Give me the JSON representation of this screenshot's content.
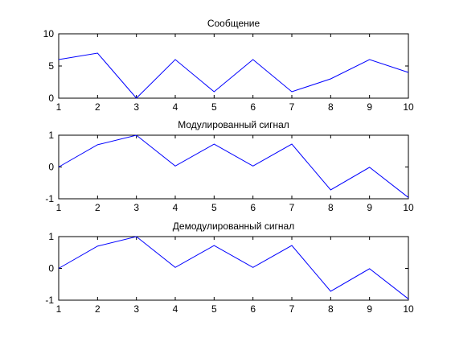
{
  "figure": {
    "background_color": "#ffffff",
    "line_color": "#0000ff"
  },
  "chart_data": [
    {
      "type": "line",
      "title": "Сообщение",
      "x": [
        1,
        2,
        3,
        4,
        5,
        6,
        7,
        8,
        9,
        10
      ],
      "y": [
        6,
        7,
        0,
        6,
        1,
        6,
        1,
        3,
        6,
        4
      ],
      "xlim": [
        1,
        10
      ],
      "ylim": [
        0,
        10
      ],
      "xticks": [
        1,
        2,
        3,
        4,
        5,
        6,
        7,
        8,
        9,
        10
      ],
      "yticks": [
        0,
        5,
        10
      ],
      "grid": false
    },
    {
      "type": "line",
      "title": "Модулированный сигнал",
      "x": [
        1,
        2,
        3,
        4,
        5,
        6,
        7,
        8,
        9,
        10
      ],
      "y": [
        0.0,
        0.7,
        1.0,
        0.03,
        0.72,
        0.03,
        0.72,
        -0.72,
        -0.01,
        -0.96
      ],
      "xlim": [
        1,
        10
      ],
      "ylim": [
        -1,
        1
      ],
      "xticks": [
        1,
        2,
        3,
        4,
        5,
        6,
        7,
        8,
        9,
        10
      ],
      "yticks": [
        -1,
        0,
        1
      ],
      "grid": false
    },
    {
      "type": "line",
      "title": "Демодулированный сигнал",
      "x": [
        1,
        2,
        3,
        4,
        5,
        6,
        7,
        8,
        9,
        10
      ],
      "y": [
        0.0,
        0.7,
        1.0,
        0.03,
        0.72,
        0.03,
        0.72,
        -0.72,
        -0.01,
        -0.96
      ],
      "xlim": [
        1,
        10
      ],
      "ylim": [
        -1,
        1
      ],
      "xticks": [
        1,
        2,
        3,
        4,
        5,
        6,
        7,
        8,
        9,
        10
      ],
      "yticks": [
        -1,
        0,
        1
      ],
      "grid": false
    }
  ]
}
